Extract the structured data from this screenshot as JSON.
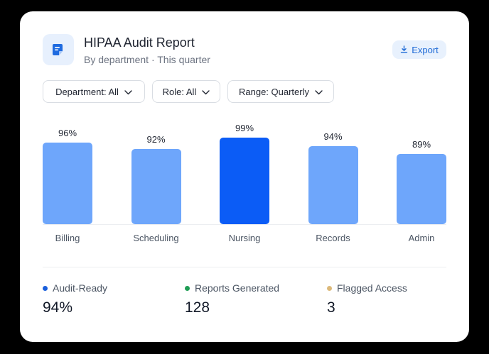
{
  "header": {
    "title": "HIPAA Audit Report",
    "subtitle": "By department · This quarter",
    "icon": "document-icon",
    "export_label": "Export",
    "export_icon": "download-icon"
  },
  "filters": [
    {
      "label": "Department: All"
    },
    {
      "label": "Role: All"
    },
    {
      "label": "Range: Quarterly"
    }
  ],
  "colors": {
    "bar": "#6ea6fb",
    "bar_highlight": "#0b5cf6",
    "audit_ready": "#1a5fdc",
    "reports_generated": "#1f9d55",
    "flagged_access": "#dcb97a",
    "accent": "#1e6ad6"
  },
  "chart_data": {
    "type": "bar",
    "categories": [
      "Billing",
      "Scheduling",
      "Nursing",
      "Records",
      "Admin"
    ],
    "values": [
      96,
      92,
      99,
      94,
      89
    ],
    "value_labels": [
      "96%",
      "92%",
      "99%",
      "94%",
      "89%"
    ],
    "highlight_index": 2,
    "ylim": [
      0,
      100
    ],
    "grid": false
  },
  "stats": [
    {
      "label": "Audit-Ready",
      "value": "94%"
    },
    {
      "label": "Reports Generated",
      "value": "128"
    },
    {
      "label": "Flagged Access",
      "value": "3"
    }
  ]
}
